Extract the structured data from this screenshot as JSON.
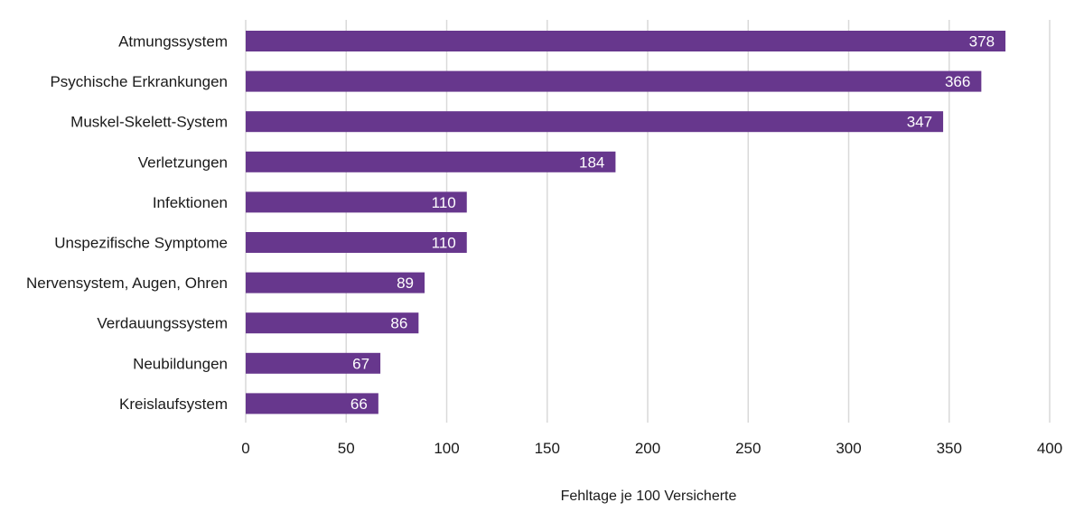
{
  "chart_data": {
    "type": "bar",
    "orientation": "horizontal",
    "categories": [
      "Atmungssystem",
      "Psychische Erkrankungen",
      "Muskel-Skelett-System",
      "Verletzungen",
      "Infektionen",
      "Unspezifische Symptome",
      "Nervensystem, Augen, Ohren",
      "Verdauungssystem",
      "Neubildungen",
      "Kreislaufsystem"
    ],
    "values": [
      378,
      366,
      347,
      184,
      110,
      110,
      89,
      86,
      67,
      66
    ],
    "value_labels": [
      "378",
      "366",
      "347",
      "184",
      "110",
      "110",
      "89",
      "86",
      "67",
      "66"
    ],
    "xlabel": "Fehltage je 100 Versicherte",
    "ylabel": "",
    "title": "",
    "xlim": [
      0,
      400
    ],
    "xticks": [
      "0",
      "50",
      "100",
      "150",
      "200",
      "250",
      "300",
      "350",
      "400"
    ],
    "grid": "vertical",
    "legend": "none",
    "bar_color": "#67378d"
  }
}
